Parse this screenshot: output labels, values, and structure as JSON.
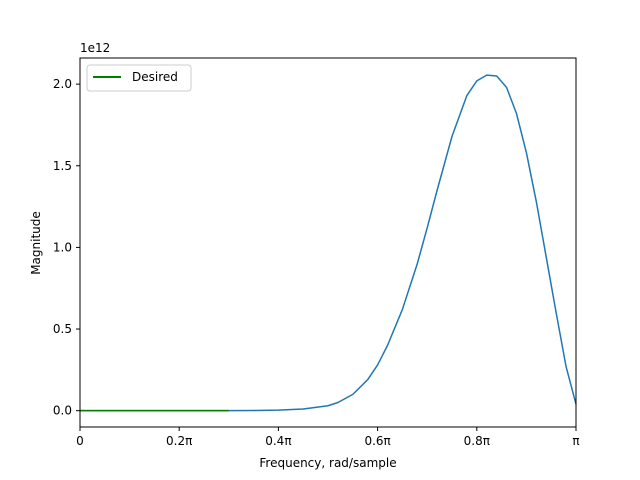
{
  "chart_data": {
    "type": "line",
    "title": "",
    "xlabel": "Frequency, rad/sample",
    "ylabel": "Magnitude",
    "y_offset_label": "1e12",
    "xlim": [
      0,
      1
    ],
    "ylim": [
      -0.1,
      2.16
    ],
    "x_ticks": [
      {
        "value": 0,
        "label": "0"
      },
      {
        "value": 0.2,
        "label": "0.2π"
      },
      {
        "value": 0.4,
        "label": "0.4π"
      },
      {
        "value": 0.6,
        "label": "0.6π"
      },
      {
        "value": 0.8,
        "label": "0.8π"
      },
      {
        "value": 1.0,
        "label": "π"
      }
    ],
    "y_ticks": [
      {
        "value": 0.0,
        "label": "0.0"
      },
      {
        "value": 0.5,
        "label": "0.5"
      },
      {
        "value": 1.0,
        "label": "1.0"
      },
      {
        "value": 1.5,
        "label": "1.5"
      },
      {
        "value": 2.0,
        "label": "2.0"
      }
    ],
    "grid": false,
    "legend": {
      "placement": "top-left",
      "entries": [
        "Desired"
      ]
    },
    "series": [
      {
        "color": "#1f77b4",
        "x": [
          0,
          0.1,
          0.2,
          0.3,
          0.35,
          0.4,
          0.45,
          0.5,
          0.52,
          0.55,
          0.58,
          0.6,
          0.62,
          0.65,
          0.68,
          0.7,
          0.72,
          0.75,
          0.78,
          0.8,
          0.82,
          0.84,
          0.86,
          0.88,
          0.9,
          0.92,
          0.94,
          0.96,
          0.98,
          1.0
        ],
        "values": [
          0,
          0,
          0,
          0,
          0.001,
          0.003,
          0.01,
          0.03,
          0.05,
          0.1,
          0.19,
          0.28,
          0.4,
          0.62,
          0.9,
          1.12,
          1.35,
          1.68,
          1.93,
          2.02,
          2.055,
          2.05,
          1.98,
          1.82,
          1.58,
          1.28,
          0.94,
          0.6,
          0.27,
          0.04
        ]
      },
      {
        "name": "Desired",
        "color": "#008000",
        "x": [
          0,
          0.3
        ],
        "values": [
          0,
          0
        ]
      }
    ]
  }
}
